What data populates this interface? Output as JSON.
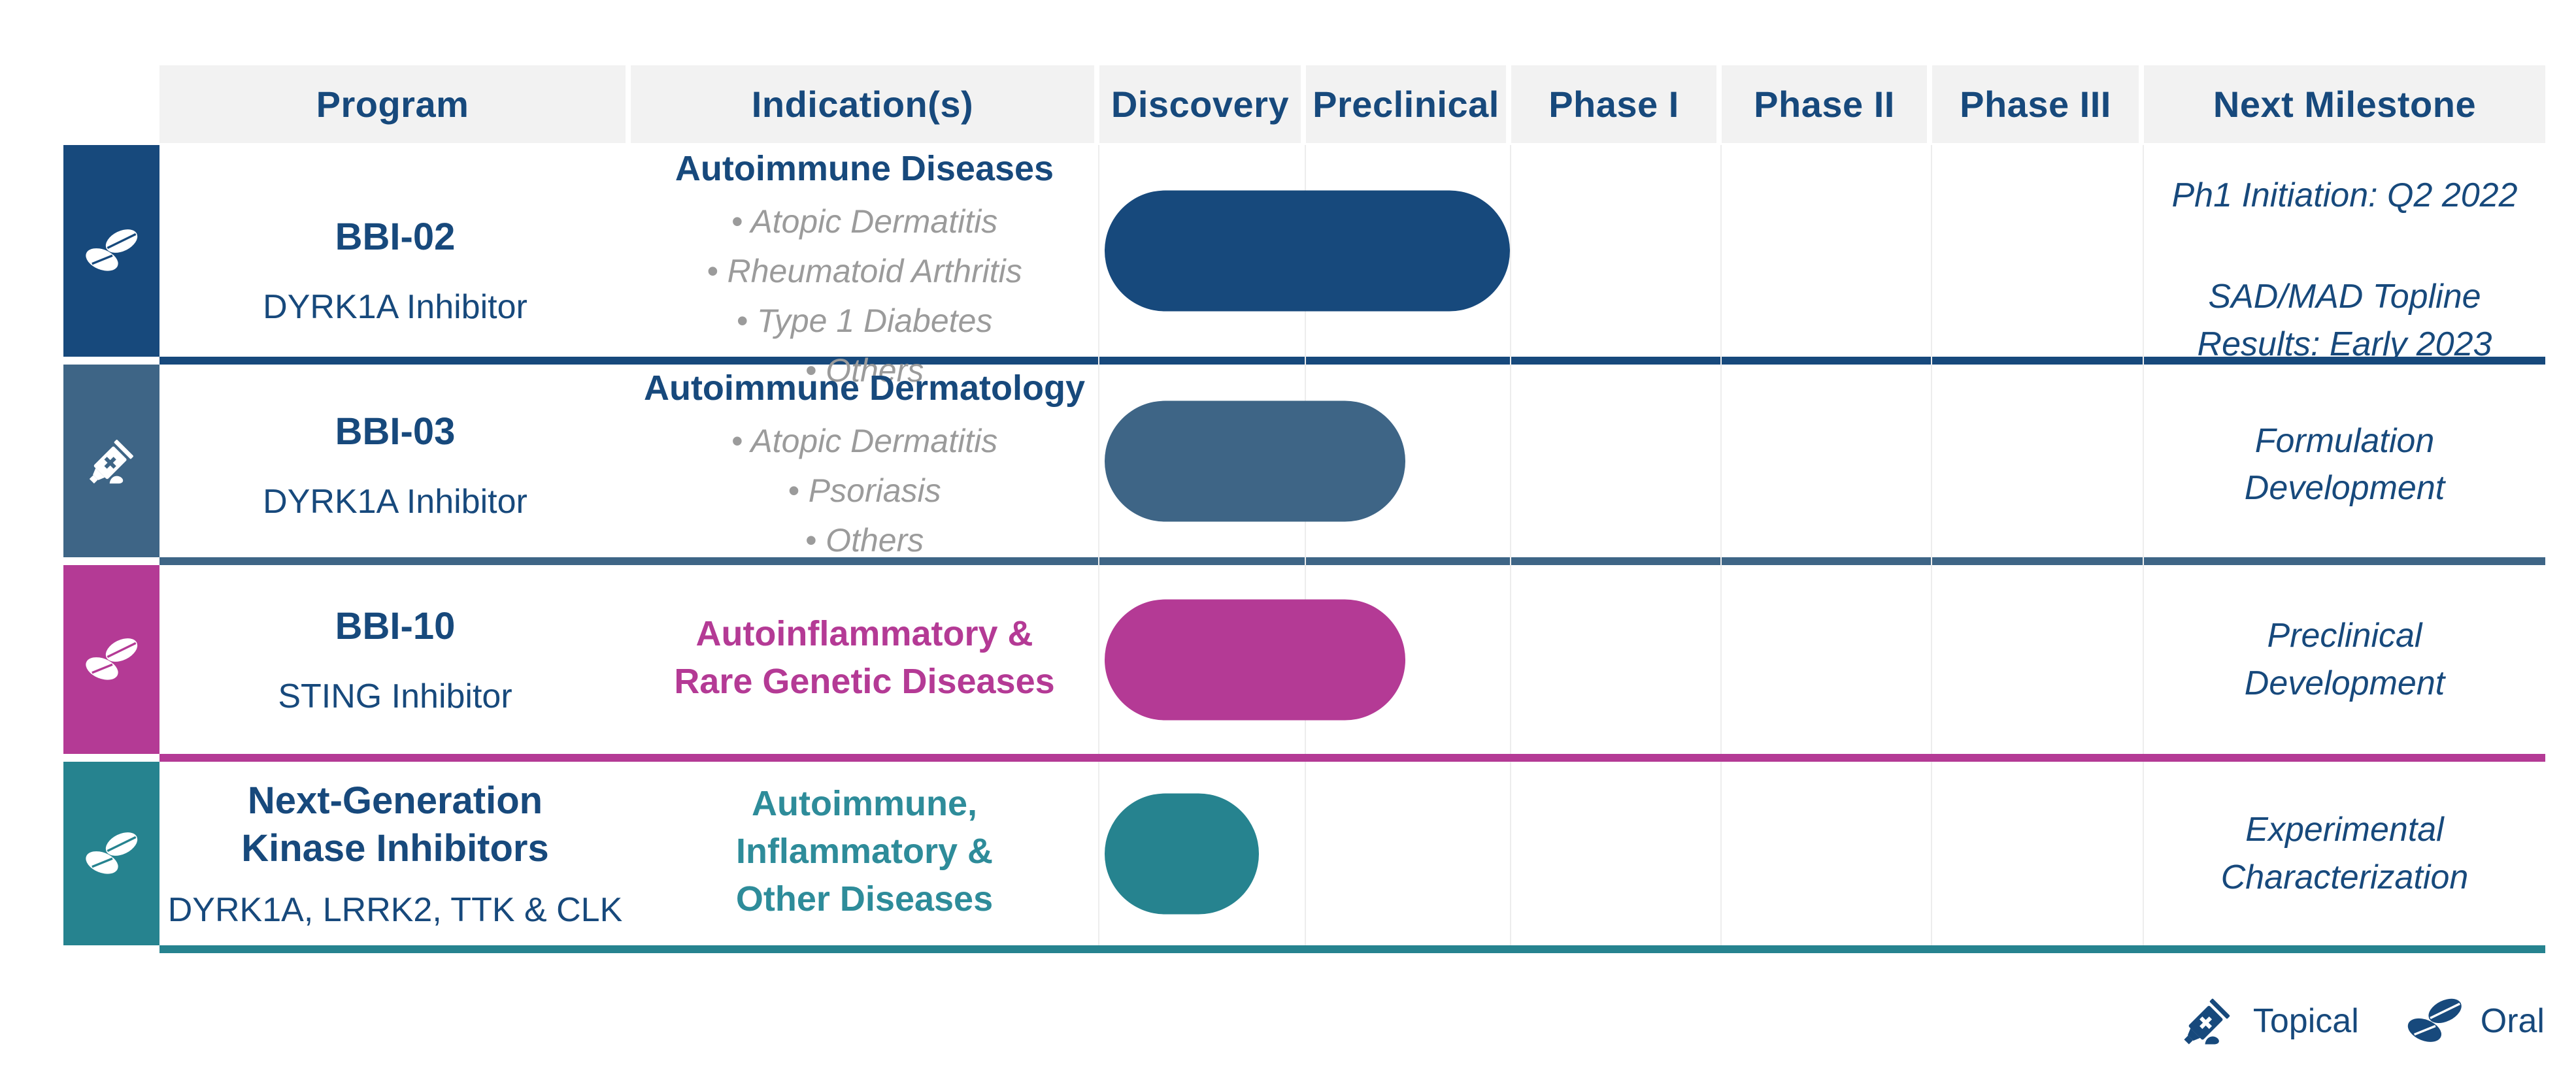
{
  "colors": {
    "navy_text": "#17497C",
    "header_bg": "#F2F2F2",
    "grid_line": "#EDEDED",
    "bullet_gray": "#9B9B9B"
  },
  "header": {
    "columns": [
      "Program",
      "Indication(s)",
      "Discovery",
      "Preclinical",
      "Phase I",
      "Phase II",
      "Phase III",
      "Next Milestone"
    ]
  },
  "legend": {
    "items": [
      {
        "icon": "topical-tube-icon",
        "label": "Topical"
      },
      {
        "icon": "oral-pills-icon",
        "label": "Oral"
      }
    ]
  },
  "chart_data": {
    "type": "table",
    "columns": [
      "Program",
      "Indication(s)",
      "Discovery",
      "Preclinical",
      "Phase I",
      "Phase II",
      "Phase III",
      "Next Milestone"
    ],
    "phase_scale": [
      "Discovery",
      "Preclinical",
      "Phase I",
      "Phase II",
      "Phase III"
    ],
    "rows": [
      {
        "program": "BBI-02",
        "mechanism": "DYRK1A Inhibitor",
        "route": "oral",
        "accent_color": "#17497C",
        "indication_heading": "Autoimmune Diseases",
        "indication_color": "#17497C",
        "bullets": [
          "Atopic Dermatitis",
          "Rheumatoid Arthritis",
          "Type 1 Diabetes",
          "Others"
        ],
        "bar": {
          "start": "Discovery",
          "end": "Preclinical",
          "end_fraction": 1.0
        },
        "milestones": [
          "Ph1 Initiation: Q2 2022",
          "SAD/MAD Topline\nResults: Early 2023"
        ]
      },
      {
        "program": "BBI-03",
        "mechanism": "DYRK1A Inhibitor",
        "route": "topical",
        "accent_color": "#3E6586",
        "indication_heading": "Autoimmune Dermatology",
        "indication_color": "#17497C",
        "bullets": [
          "Atopic Dermatitis",
          "Psoriasis",
          "Others"
        ],
        "bar": {
          "start": "Discovery",
          "end": "Preclinical",
          "end_fraction": 0.49
        },
        "milestones": [
          "Formulation\nDevelopment"
        ]
      },
      {
        "program": "BBI-10",
        "mechanism": "STING Inhibitor",
        "route": "oral",
        "accent_color": "#B43A95",
        "indication_heading": "Autoinflammatory &\nRare Genetic Diseases",
        "indication_color": "#B43A95",
        "bullets": [],
        "bar": {
          "start": "Discovery",
          "end": "Preclinical",
          "end_fraction": 0.49
        },
        "milestones": [
          "Preclinical\nDevelopment"
        ]
      },
      {
        "program": "Next-Generation\nKinase Inhibitors",
        "mechanism": "DYRK1A, LRRK2, TTK & CLK",
        "route": "oral",
        "accent_color": "#26838F",
        "indication_heading": "Autoimmune,\nInflammatory &\nOther Diseases",
        "indication_color": "#2E8C9A",
        "bullets": [],
        "bar": {
          "start": "Discovery",
          "end": "Discovery",
          "end_fraction": 0.78
        },
        "milestones": [
          "Experimental\nCharacterization"
        ]
      }
    ]
  }
}
